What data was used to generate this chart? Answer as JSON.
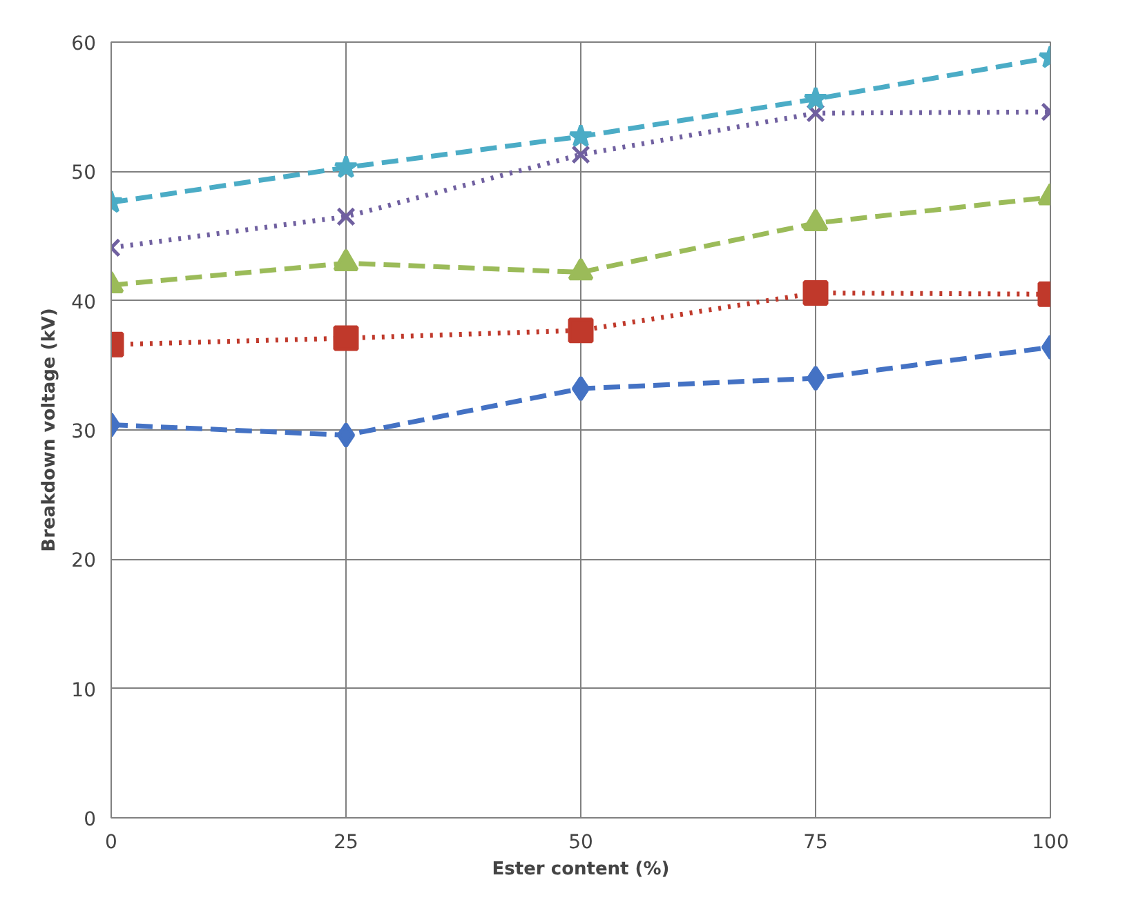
{
  "chart_data": {
    "type": "line",
    "xlabel": "Ester content (%)",
    "ylabel": "Breakdown voltage (kV)",
    "x": [
      0,
      25,
      50,
      75,
      100
    ],
    "xlim": [
      0,
      100
    ],
    "xticks": [
      0,
      25,
      50,
      75,
      100
    ],
    "ylim": [
      0,
      60
    ],
    "yticks": [
      0,
      10,
      20,
      30,
      40,
      50,
      60
    ],
    "grid": true,
    "series": [
      {
        "color": "#4472c4",
        "marker": "diamond",
        "line_style": "dashed",
        "values": [
          30.4,
          29.6,
          33.2,
          34.0,
          36.4
        ]
      },
      {
        "color": "#c0392b",
        "marker": "square",
        "line_style": "dotted",
        "values": [
          36.6,
          37.1,
          37.7,
          40.6,
          40.5
        ]
      },
      {
        "color": "#9bbb59",
        "marker": "triangle",
        "line_style": "dashed",
        "values": [
          41.2,
          42.9,
          42.2,
          46.0,
          48.0
        ]
      },
      {
        "color": "#7060a0",
        "marker": "cross",
        "line_style": "dotted",
        "values": [
          44.1,
          46.5,
          51.3,
          54.5,
          54.6
        ]
      },
      {
        "color": "#4bacc6",
        "marker": "star",
        "line_style": "dashed",
        "values": [
          47.6,
          50.3,
          52.7,
          55.6,
          58.8
        ]
      }
    ]
  }
}
